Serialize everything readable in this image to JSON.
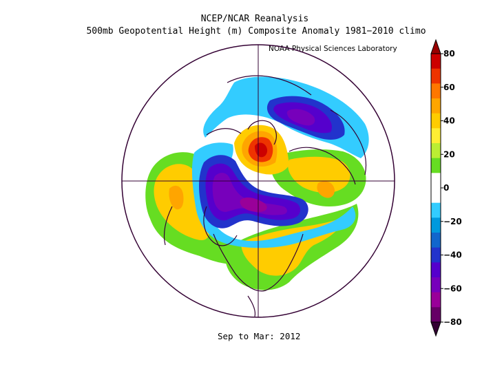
{
  "title": {
    "line1": "NCEP/NCAR Reanalysis",
    "line2": "500mb Geopotential Height (m) Composite Anomaly 1981−2010 climo"
  },
  "credit": "NOAA Physical Sciences Laboratory",
  "period": "Sep to Mar: 2012",
  "colorbar": {
    "ticks": [
      "80",
      "60",
      "40",
      "20",
      "0",
      "−20",
      "−40",
      "−60",
      "−80"
    ],
    "colors": [
      "#cc0000",
      "#ee3300",
      "#ff7700",
      "#ffa500",
      "#ffcc00",
      "#ffee33",
      "#bbee33",
      "#66dd22",
      "#ffffff",
      "#ffffff",
      "#33ccff",
      "#0099dd",
      "#1166cc",
      "#2233cc",
      "#5500cc",
      "#7700bb",
      "#990099",
      "#660066"
    ]
  },
  "map": {
    "projection": "north-polar-stereographic",
    "variable": "500mb geopotential height anomaly"
  }
}
